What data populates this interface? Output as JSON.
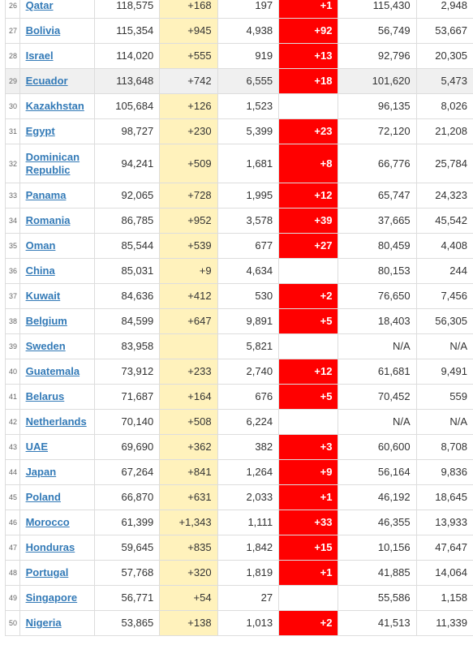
{
  "rows": [
    {
      "n": "26",
      "country": "Qatar",
      "total": "118,575",
      "new": "+168",
      "deaths": "197",
      "newd": "+1",
      "recovered": "115,430",
      "active": "2,948"
    },
    {
      "n": "27",
      "country": "Bolivia",
      "total": "115,354",
      "new": "+945",
      "deaths": "4,938",
      "newd": "+92",
      "recovered": "56,749",
      "active": "53,667"
    },
    {
      "n": "28",
      "country": "Israel",
      "total": "114,020",
      "new": "+555",
      "deaths": "919",
      "newd": "+13",
      "recovered": "92,796",
      "active": "20,305"
    },
    {
      "n": "29",
      "country": "Ecuador",
      "total": "113,648",
      "new": "+742",
      "deaths": "6,555",
      "newd": "+18",
      "recovered": "101,620",
      "active": "5,473",
      "highlight": true
    },
    {
      "n": "30",
      "country": "Kazakhstan",
      "total": "105,684",
      "new": "+126",
      "deaths": "1,523",
      "newd": "",
      "recovered": "96,135",
      "active": "8,026"
    },
    {
      "n": "31",
      "country": "Egypt",
      "total": "98,727",
      "new": "+230",
      "deaths": "5,399",
      "newd": "+23",
      "recovered": "72,120",
      "active": "21,208"
    },
    {
      "n": "32",
      "country": "Dominican Republic",
      "total": "94,241",
      "new": "+509",
      "deaths": "1,681",
      "newd": "+8",
      "recovered": "66,776",
      "active": "25,784",
      "tall": true
    },
    {
      "n": "33",
      "country": "Panama",
      "total": "92,065",
      "new": "+728",
      "deaths": "1,995",
      "newd": "+12",
      "recovered": "65,747",
      "active": "24,323"
    },
    {
      "n": "34",
      "country": "Romania",
      "total": "86,785",
      "new": "+952",
      "deaths": "3,578",
      "newd": "+39",
      "recovered": "37,665",
      "active": "45,542"
    },
    {
      "n": "35",
      "country": "Oman",
      "total": "85,544",
      "new": "+539",
      "deaths": "677",
      "newd": "+27",
      "recovered": "80,459",
      "active": "4,408"
    },
    {
      "n": "36",
      "country": "China",
      "total": "85,031",
      "new": "+9",
      "deaths": "4,634",
      "newd": "",
      "recovered": "80,153",
      "active": "244"
    },
    {
      "n": "37",
      "country": "Kuwait",
      "total": "84,636",
      "new": "+412",
      "deaths": "530",
      "newd": "+2",
      "recovered": "76,650",
      "active": "7,456"
    },
    {
      "n": "38",
      "country": "Belgium",
      "total": "84,599",
      "new": "+647",
      "deaths": "9,891",
      "newd": "+5",
      "recovered": "18,403",
      "active": "56,305"
    },
    {
      "n": "39",
      "country": "Sweden",
      "total": "83,958",
      "new": "",
      "deaths": "5,821",
      "newd": "",
      "recovered": "N/A",
      "active": "N/A"
    },
    {
      "n": "40",
      "country": "Guatemala",
      "total": "73,912",
      "new": "+233",
      "deaths": "2,740",
      "newd": "+12",
      "recovered": "61,681",
      "active": "9,491"
    },
    {
      "n": "41",
      "country": "Belarus",
      "total": "71,687",
      "new": "+164",
      "deaths": "676",
      "newd": "+5",
      "recovered": "70,452",
      "active": "559"
    },
    {
      "n": "42",
      "country": "Netherlands",
      "total": "70,140",
      "new": "+508",
      "deaths": "6,224",
      "newd": "",
      "recovered": "N/A",
      "active": "N/A"
    },
    {
      "n": "43",
      "country": "UAE",
      "total": "69,690",
      "new": "+362",
      "deaths": "382",
      "newd": "+3",
      "recovered": "60,600",
      "active": "8,708"
    },
    {
      "n": "44",
      "country": "Japan",
      "total": "67,264",
      "new": "+841",
      "deaths": "1,264",
      "newd": "+9",
      "recovered": "56,164",
      "active": "9,836"
    },
    {
      "n": "45",
      "country": "Poland",
      "total": "66,870",
      "new": "+631",
      "deaths": "2,033",
      "newd": "+1",
      "recovered": "46,192",
      "active": "18,645"
    },
    {
      "n": "46",
      "country": "Morocco",
      "total": "61,399",
      "new": "+1,343",
      "deaths": "1,111",
      "newd": "+33",
      "recovered": "46,355",
      "active": "13,933"
    },
    {
      "n": "47",
      "country": "Honduras",
      "total": "59,645",
      "new": "+835",
      "deaths": "1,842",
      "newd": "+15",
      "recovered": "10,156",
      "active": "47,647"
    },
    {
      "n": "48",
      "country": "Portugal",
      "total": "57,768",
      "new": "+320",
      "deaths": "1,819",
      "newd": "+1",
      "recovered": "41,885",
      "active": "14,064"
    },
    {
      "n": "49",
      "country": "Singapore",
      "total": "56,771",
      "new": "+54",
      "deaths": "27",
      "newd": "",
      "recovered": "55,586",
      "active": "1,158"
    },
    {
      "n": "50",
      "country": "Nigeria",
      "total": "53,865",
      "new": "+138",
      "deaths": "1,013",
      "newd": "+2",
      "recovered": "41,513",
      "active": "11,339"
    }
  ],
  "colors": {
    "link": "#337ab7",
    "new_cases_bg": "#fff2bc",
    "new_deaths_bg": "#ff0000",
    "highlight_row": "#f0f0f0"
  }
}
